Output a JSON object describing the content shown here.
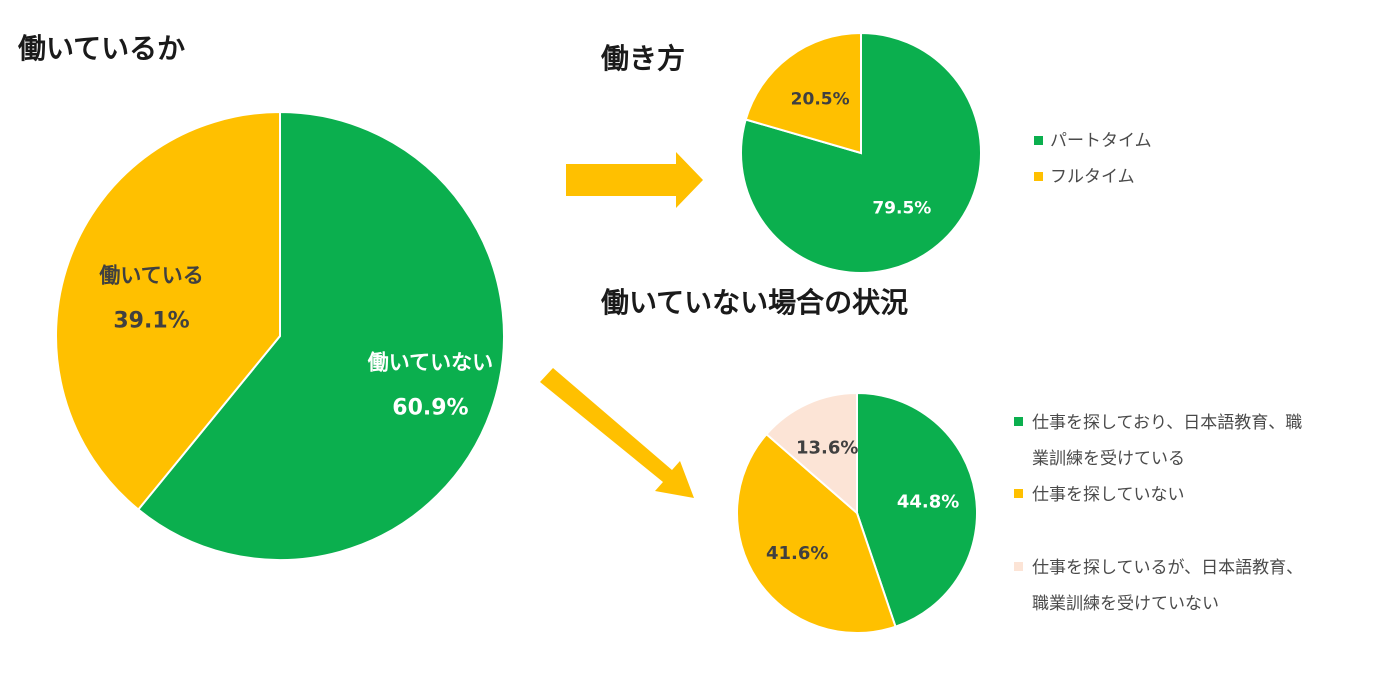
{
  "colors": {
    "green": "#0BAF4E",
    "yellow": "#FFC000",
    "peach": "#FCE4D6",
    "dark_label": "#404040",
    "white_label": "#FFFFFF",
    "arrow": "#FFC000"
  },
  "chart_data": [
    {
      "type": "pie",
      "title": "働いているか",
      "slices": [
        {
          "label": "働いていない",
          "value": 60.9,
          "value_label": "60.9%",
          "color": "#0BAF4E",
          "label_color": "#FFFFFF"
        },
        {
          "label": "働いている",
          "value": 39.1,
          "value_label": "39.1%",
          "color": "#FFC000",
          "label_color": "#404040"
        }
      ]
    },
    {
      "type": "pie",
      "title": "働き方",
      "slices": [
        {
          "label": "パートタイム",
          "value": 79.5,
          "value_label": "79.5%",
          "color": "#0BAF4E",
          "label_color": "#FFFFFF"
        },
        {
          "label": "フルタイム",
          "value": 20.5,
          "value_label": "20.5%",
          "color": "#FFC000",
          "label_color": "#404040"
        }
      ],
      "legend": [
        "パートタイム",
        "フルタイム"
      ]
    },
    {
      "type": "pie",
      "title": "働いていない場合の状況",
      "slices": [
        {
          "label": "仕事を探しており、日本語教育、職業訓練を受けている",
          "value": 44.8,
          "value_label": "44.8%",
          "color": "#0BAF4E",
          "label_color": "#FFFFFF"
        },
        {
          "label": "仕事を探していない",
          "value": 41.6,
          "value_label": "41.6%",
          "color": "#FFC000",
          "label_color": "#404040"
        },
        {
          "label": "仕事を探しているが、日本語教育、職業訓練を受けていない",
          "value": 13.6,
          "value_label": "13.6%",
          "color": "#FCE4D6",
          "label_color": "#404040"
        }
      ],
      "legend": [
        [
          "仕事を探しており、日本語教育、職",
          "業訓練を受けている"
        ],
        [
          "仕事を探していない"
        ],
        [
          "仕事を探しているが、日本語教育、",
          "職業訓練を受けていない"
        ]
      ]
    }
  ]
}
